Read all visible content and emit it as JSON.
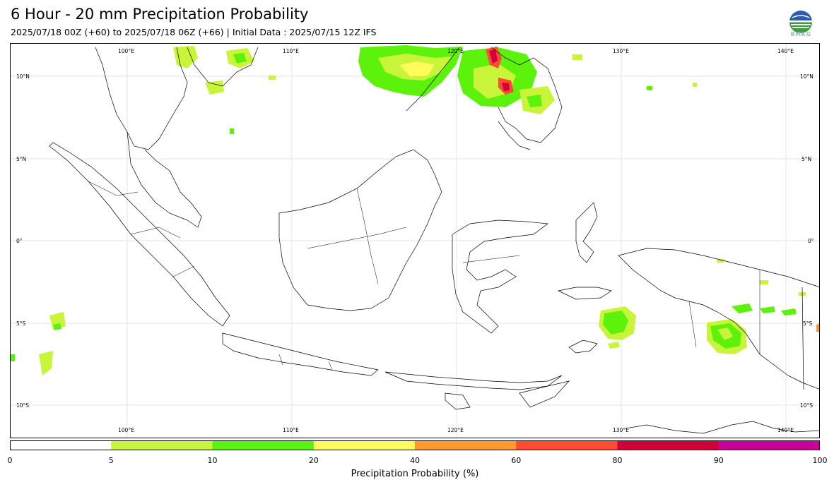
{
  "header": {
    "title": "6 Hour - 20 mm Precipitation Probability",
    "subtitle": "2025/07/18 00Z (+60) to 2025/07/18 06Z (+66) | Initial Data : 2025/07/15 12Z IFS",
    "logo_text": "BMKG"
  },
  "map": {
    "lon_range": [
      92.7,
      141.7
    ],
    "lat_range": [
      -12,
      12
    ],
    "lon_labels": [
      "100°E",
      "110°E",
      "120°E",
      "130°E",
      "140°E"
    ],
    "lat_labels": [
      "10°N",
      "5°N",
      "0°",
      "5°S",
      "10°S"
    ],
    "gridlines": true
  },
  "colorbar": {
    "title": "Precipitation Probability (%)",
    "ticks": [
      "0",
      "5",
      "10",
      "20",
      "40",
      "60",
      "80",
      "90",
      "100"
    ],
    "colors": [
      "#ffffff",
      "#c8f53a",
      "#5cf20c",
      "#fdfc5a",
      "#ff9933",
      "#ff4b33",
      "#d1003b",
      "#cc0099"
    ]
  }
}
